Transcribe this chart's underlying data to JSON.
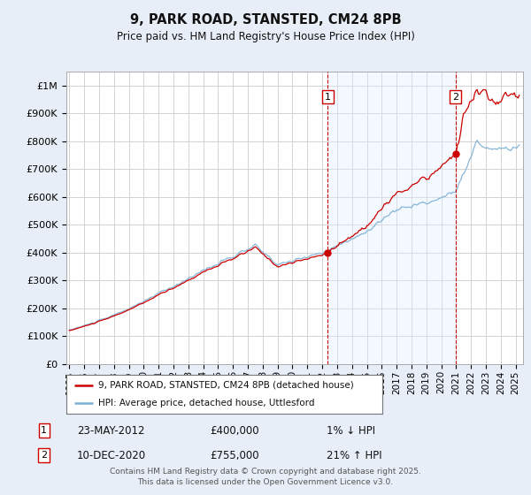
{
  "title": "9, PARK ROAD, STANSTED, CM24 8PB",
  "subtitle": "Price paid vs. HM Land Registry's House Price Index (HPI)",
  "background_color": "#e8eef8",
  "plot_bg_color": "#ffffff",
  "grid_color": "#cccccc",
  "shade_color": "#ddeeff",
  "sale1_date": "23-MAY-2012",
  "sale1_price": 400000,
  "sale1_pct": "1% ↓ HPI",
  "sale2_date": "10-DEC-2020",
  "sale2_price": 755000,
  "sale2_pct": "21% ↑ HPI",
  "legend_label1": "9, PARK ROAD, STANSTED, CM24 8PB (detached house)",
  "legend_label2": "HPI: Average price, detached house, Uttlesford",
  "footer": "Contains HM Land Registry data © Crown copyright and database right 2025.\nThis data is licensed under the Open Government Licence v3.0.",
  "hpi_color": "#7bafd4",
  "price_color": "#cc0000",
  "sale1_x": 2012.38,
  "sale2_x": 2020.95,
  "xlim_left": 1994.8,
  "xlim_right": 2025.5,
  "ylim_top": 1050000,
  "yticks": [
    0,
    100000,
    200000,
    300000,
    400000,
    500000,
    600000,
    700000,
    800000,
    900000,
    1000000
  ],
  "ytick_labels": [
    "£0",
    "£100K",
    "£200K",
    "£300K",
    "£400K",
    "£500K",
    "£600K",
    "£700K",
    "£800K",
    "£900K",
    "£1M"
  ]
}
